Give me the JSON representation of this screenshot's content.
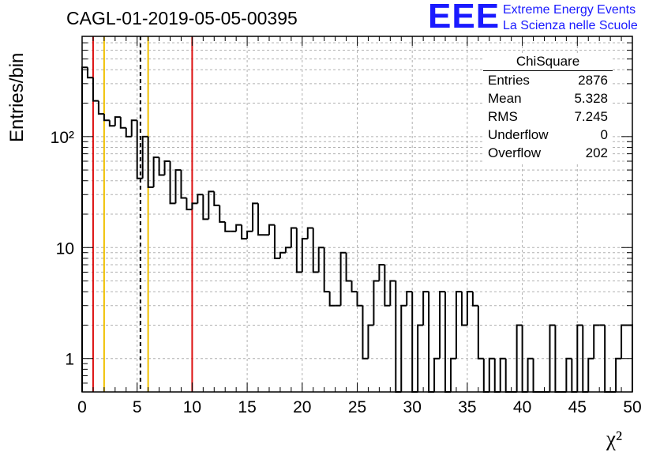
{
  "run_title": "CAGL-01-2019-05-05-00395",
  "logo": {
    "mark": "EEE",
    "line1": "Extreme Energy Events",
    "line2": "La Scienza nelle Scuole",
    "color": "#1a1aff"
  },
  "stats_box": {
    "title": "ChiSquare",
    "rows": [
      {
        "key": "Entries",
        "value": "2876"
      },
      {
        "key": "Mean",
        "value": "5.328"
      },
      {
        "key": "RMS",
        "value": "7.245"
      },
      {
        "key": "Underflow",
        "value": "0"
      },
      {
        "key": "Overflow",
        "value": "202"
      }
    ]
  },
  "chart_data": {
    "type": "histogram",
    "title": "CAGL-01-2019-05-05-00395",
    "xlabel": "χ²",
    "ylabel": "Entries/bin",
    "xlim": [
      0,
      50
    ],
    "ylim": [
      0.5,
      800
    ],
    "yscale": "log",
    "grid": true,
    "bin_width": 0.5,
    "x_ticks": [
      "0",
      "5",
      "10",
      "15",
      "20",
      "25",
      "30",
      "35",
      "40",
      "45",
      "50"
    ],
    "y_ticks": [
      {
        "value": 1,
        "label": "1"
      },
      {
        "value": 10,
        "label": "10"
      },
      {
        "value": 100,
        "label": "10²"
      }
    ],
    "bin_counts": [
      420,
      340,
      210,
      160,
      140,
      125,
      150,
      120,
      100,
      140,
      42,
      100,
      35,
      65,
      45,
      60,
      25,
      50,
      28,
      22,
      25,
      30,
      18,
      32,
      24,
      17,
      14,
      14,
      16,
      12,
      14,
      25,
      13,
      13,
      16,
      8,
      9,
      10,
      15,
      6,
      12,
      15,
      6,
      10,
      4,
      3,
      3,
      9,
      5,
      4,
      3,
      1,
      2,
      5,
      7,
      3,
      5,
      0,
      3,
      4,
      0,
      2,
      4,
      0,
      1,
      4,
      0,
      1,
      4,
      2,
      4,
      3,
      1,
      0,
      1,
      0,
      1,
      0,
      0,
      2,
      0,
      1,
      0,
      0,
      0,
      2,
      0,
      0,
      1,
      0,
      2,
      0,
      1,
      2,
      2,
      0,
      0,
      1,
      2,
      2
    ],
    "vertical_lines": [
      {
        "x": 1,
        "color": "#dd1111",
        "style": "solid"
      },
      {
        "x": 2,
        "color": "#f0c000",
        "style": "solid"
      },
      {
        "x": 5.3,
        "color": "#000000",
        "style": "dashed"
      },
      {
        "x": 6,
        "color": "#f0c000",
        "style": "solid"
      },
      {
        "x": 10,
        "color": "#dd1111",
        "style": "solid"
      }
    ]
  }
}
